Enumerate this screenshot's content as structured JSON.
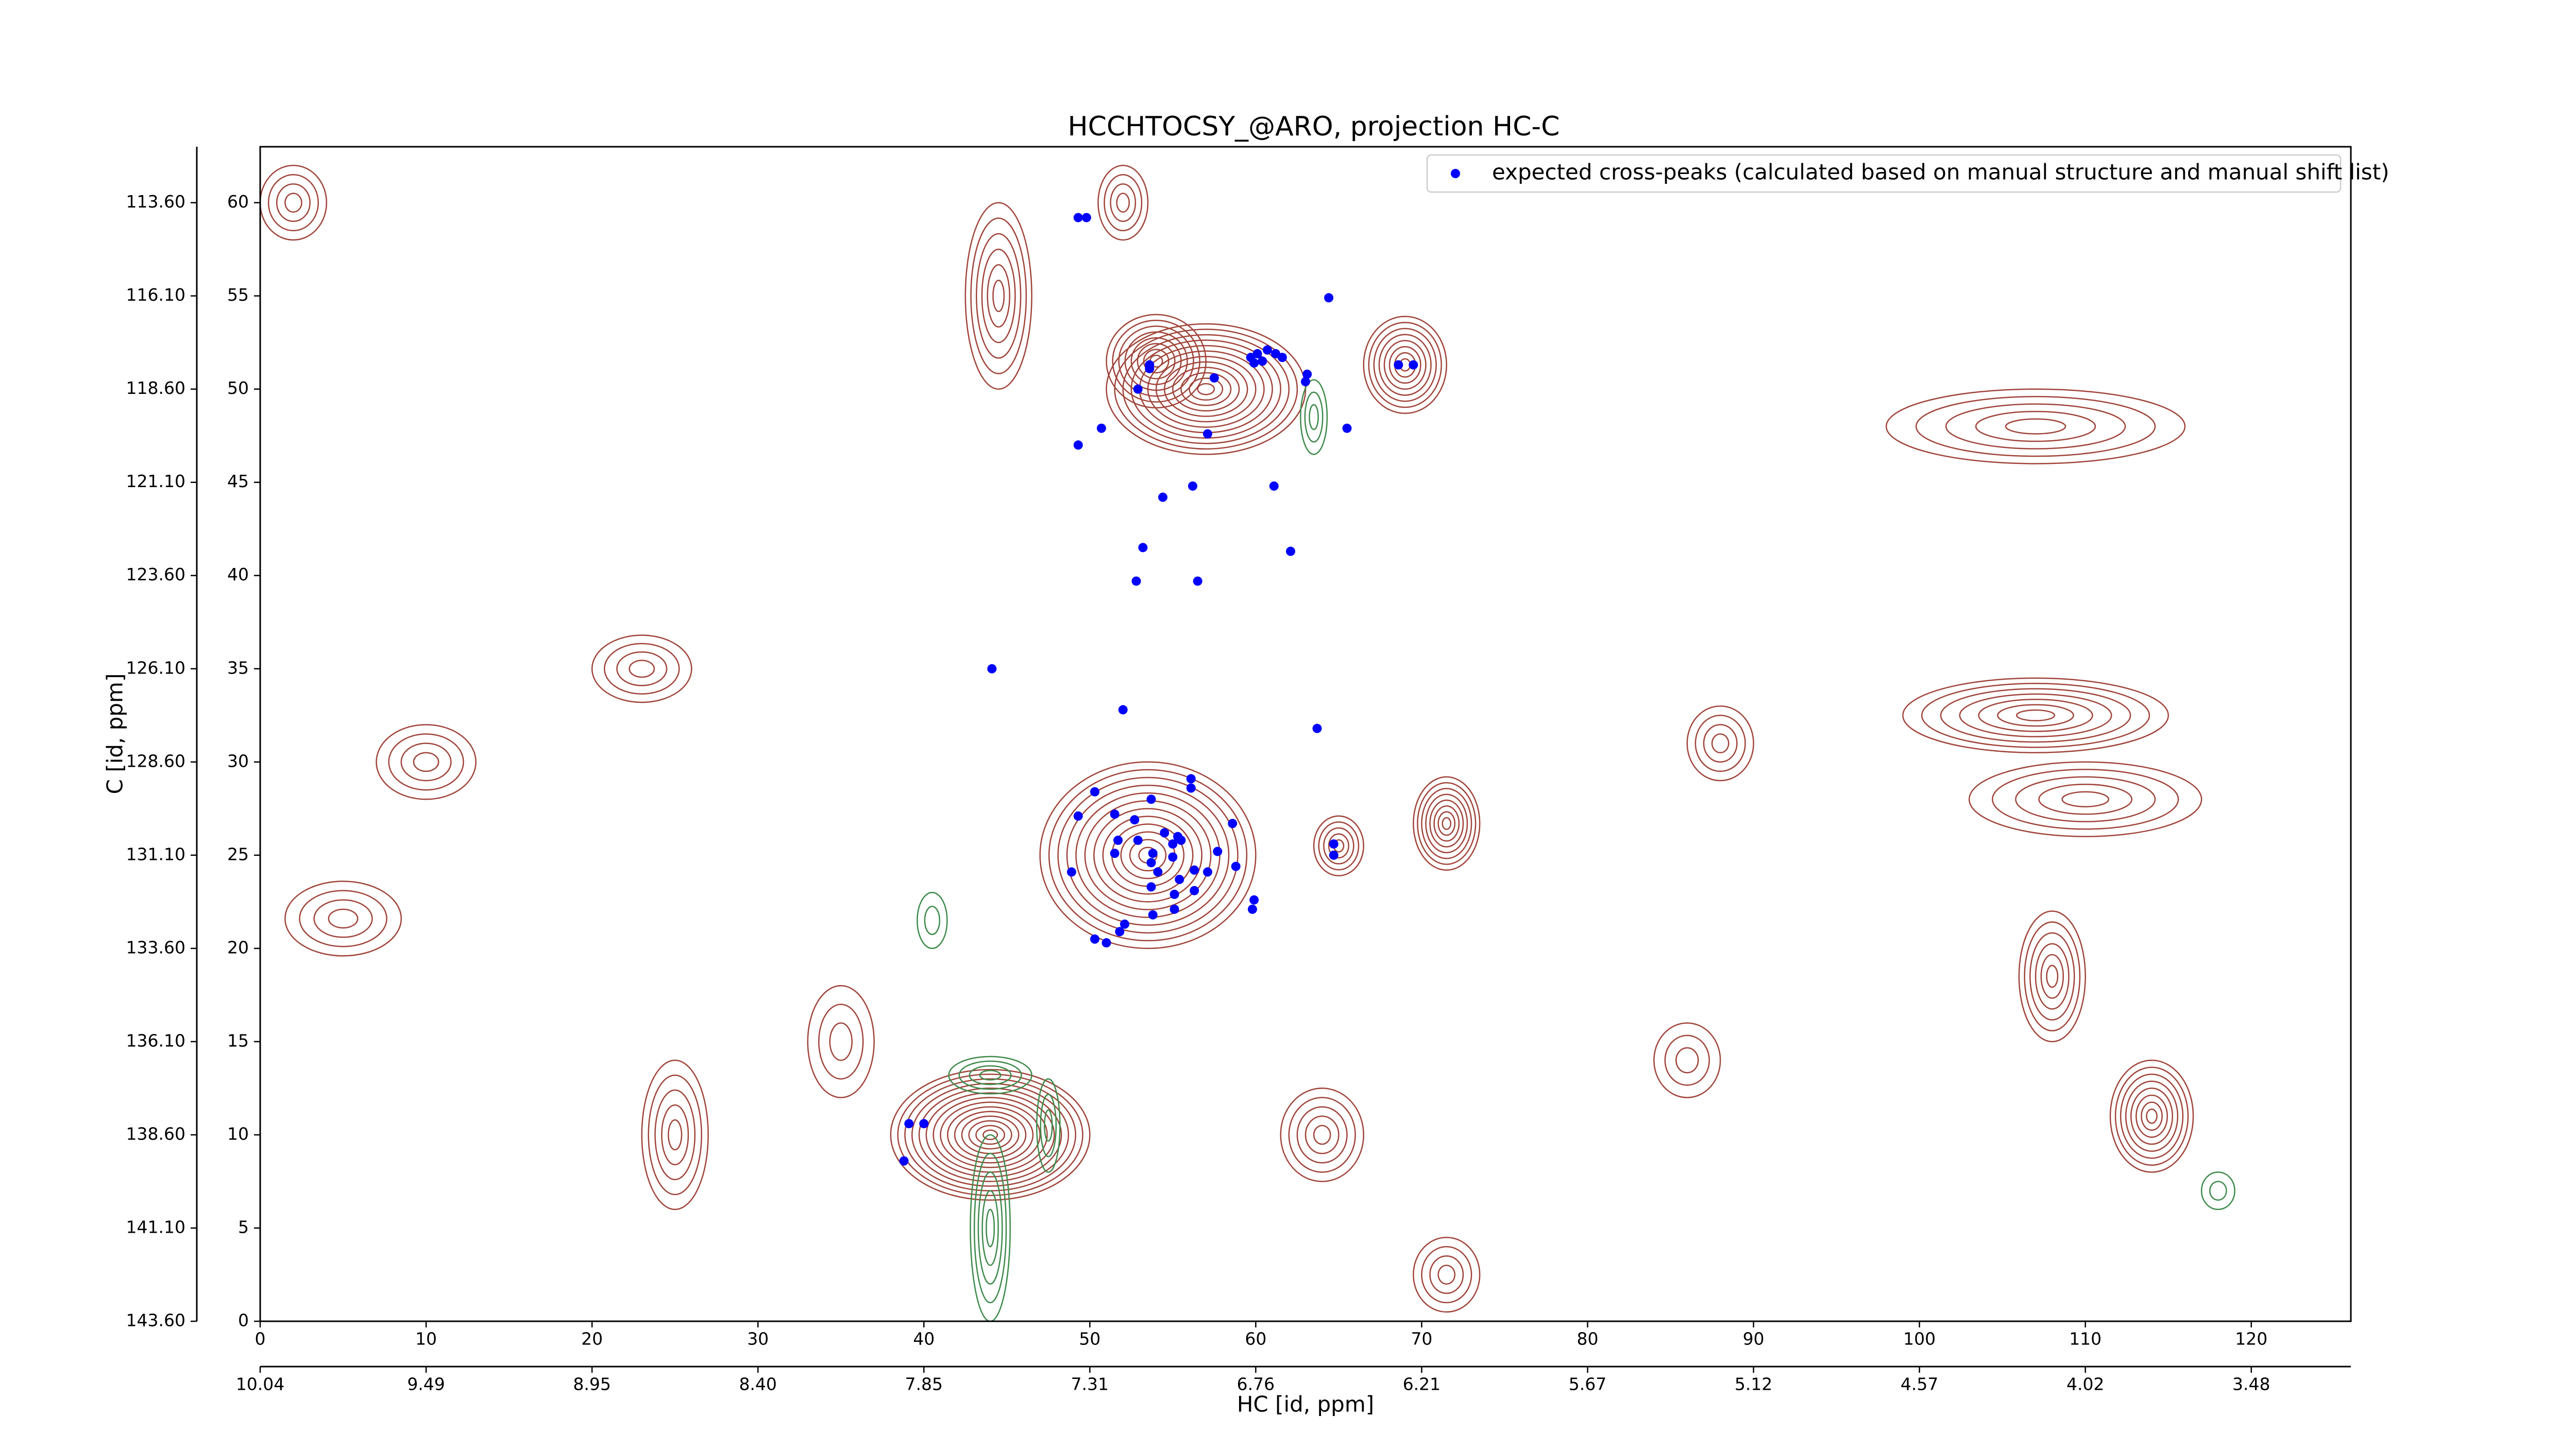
{
  "chart_data": {
    "type": "scatter",
    "title": "HCCHTOCSY_@ARO, projection HC-C",
    "x_label": "HC [id, ppm]",
    "y_label": "C [id, ppm]",
    "xlim": [
      0,
      126
    ],
    "ylim": [
      0,
      63
    ],
    "xticks": [
      0,
      10,
      20,
      30,
      40,
      50,
      60,
      70,
      80,
      90,
      100,
      110,
      120
    ],
    "yticks": [
      0,
      5,
      10,
      15,
      20,
      25,
      30,
      35,
      40,
      45,
      50,
      55,
      60
    ],
    "x2ticks": [
      {
        "value": 0,
        "label": "10.04"
      },
      {
        "value": 10,
        "label": "9.49"
      },
      {
        "value": 20,
        "label": "8.95"
      },
      {
        "value": 30,
        "label": "8.40"
      },
      {
        "value": 40,
        "label": "7.85"
      },
      {
        "value": 50,
        "label": "7.31"
      },
      {
        "value": 60,
        "label": "6.76"
      },
      {
        "value": 70,
        "label": "6.21"
      },
      {
        "value": 80,
        "label": "5.67"
      },
      {
        "value": 90,
        "label": "5.12"
      },
      {
        "value": 100,
        "label": "4.57"
      },
      {
        "value": 110,
        "label": "4.02"
      },
      {
        "value": 120,
        "label": "3.48"
      }
    ],
    "y2ticks": [
      {
        "value": 0,
        "label": "143.60"
      },
      {
        "value": 5,
        "label": "141.10"
      },
      {
        "value": 10,
        "label": "138.60"
      },
      {
        "value": 15,
        "label": "136.10"
      },
      {
        "value": 20,
        "label": "133.60"
      },
      {
        "value": 25,
        "label": "131.10"
      },
      {
        "value": 30,
        "label": "128.60"
      },
      {
        "value": 35,
        "label": "126.10"
      },
      {
        "value": 40,
        "label": "123.60"
      },
      {
        "value": 45,
        "label": "121.10"
      },
      {
        "value": 50,
        "label": "118.60"
      },
      {
        "value": 55,
        "label": "116.10"
      },
      {
        "value": 60,
        "label": "113.60"
      }
    ],
    "legend_position": "upper right",
    "series": [
      {
        "name": "expected cross-peaks (calculated based on manual structure and manual shift list)",
        "color": "#0000ff",
        "x": [
          49.3,
          49.8,
          64.4,
          53.6,
          53.6,
          52.9,
          57.5,
          59.7,
          60.1,
          60.4,
          60.7,
          61.2,
          61.6,
          59.9,
          63.1,
          63.0,
          68.6,
          69.5,
          50.7,
          49.3,
          57.1,
          65.5,
          56.2,
          54.4,
          61.1,
          53.2,
          62.1,
          52.8,
          56.5,
          44.1,
          52.0,
          63.7,
          49.3,
          50.3,
          51.5,
          52.7,
          53.7,
          56.1,
          56.1,
          58.6,
          54.5,
          55.3,
          55.0,
          55.5,
          52.9,
          51.7,
          51.5,
          53.8,
          53.7,
          55.0,
          54.1,
          55.4,
          56.3,
          57.7,
          58.8,
          57.1,
          59.9,
          59.8,
          48.9,
          53.7,
          55.1,
          56.3,
          55.1,
          53.8,
          52.1,
          51.8,
          50.3,
          51.0,
          64.7,
          64.7,
          39.1,
          40.0,
          38.8
        ],
        "values": [
          59.2,
          59.2,
          54.9,
          51.3,
          51.1,
          50.0,
          50.6,
          51.7,
          51.9,
          51.5,
          52.1,
          51.9,
          51.7,
          51.4,
          50.8,
          50.4,
          51.3,
          51.3,
          47.9,
          47.0,
          47.6,
          47.9,
          44.8,
          44.2,
          44.8,
          41.5,
          41.3,
          39.7,
          39.7,
          35.0,
          32.8,
          31.8,
          27.1,
          28.4,
          27.2,
          26.9,
          28.0,
          29.1,
          28.6,
          26.7,
          26.2,
          26.0,
          25.6,
          25.8,
          25.8,
          25.8,
          25.1,
          25.1,
          24.6,
          24.9,
          24.1,
          23.7,
          24.2,
          25.2,
          24.4,
          24.1,
          22.6,
          22.1,
          24.1,
          23.3,
          22.9,
          23.1,
          22.1,
          21.8,
          21.3,
          20.9,
          20.5,
          20.3,
          25.6,
          25.0,
          10.6,
          10.6,
          8.6
        ]
      }
    ]
  }
}
